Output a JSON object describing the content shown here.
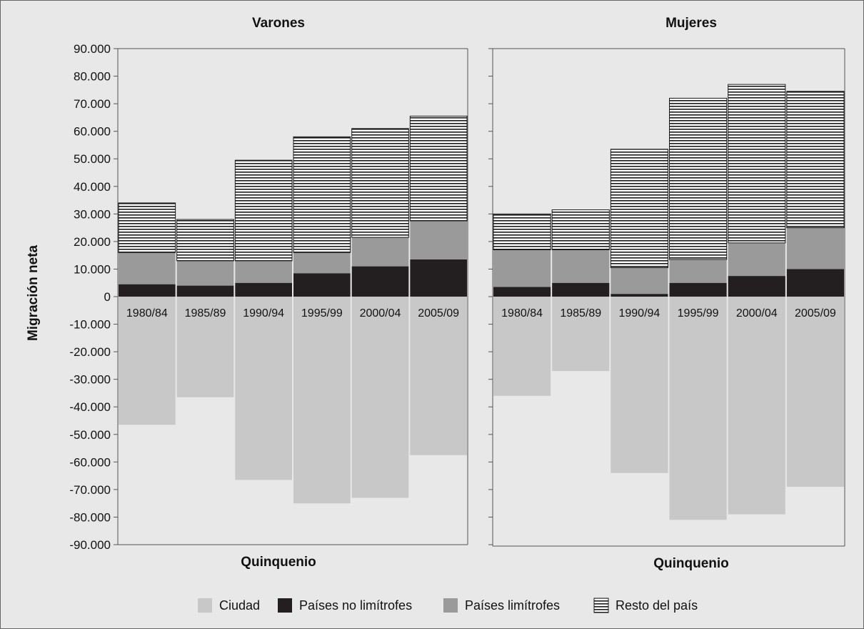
{
  "chart_data": [
    {
      "type": "bar",
      "stacked": true,
      "title": "Varones",
      "xlabel": "Quinquenio",
      "ylabel": "Migración neta",
      "ylim": [
        -90000,
        90000
      ],
      "yticks": [
        "90.000",
        "80.000",
        "70.000",
        "60.000",
        "50.000",
        "40.000",
        "30.000",
        "20.000",
        "10.000",
        "0",
        "-10.000",
        "-20.000",
        "-30.000",
        "-40.000",
        "-50.000",
        "-60.000",
        "-70.000",
        "-80.000",
        "-90.000"
      ],
      "categories": [
        "1980/84",
        "1985/89",
        "1990/94",
        "1995/99",
        "2000/04",
        "2005/09"
      ],
      "series": [
        {
          "name": "Ciudad",
          "values": [
            -46500,
            -36500,
            -66500,
            -75000,
            -73000,
            -57500
          ]
        },
        {
          "name": "Países no limítrofes",
          "values": [
            4500,
            4000,
            5000,
            8500,
            11000,
            13500
          ]
        },
        {
          "name": "Países limítrofes",
          "values": [
            11500,
            9000,
            8000,
            7500,
            10500,
            14000
          ]
        },
        {
          "name": "Resto del país",
          "values": [
            18000,
            15000,
            36500,
            42000,
            39500,
            38000
          ]
        }
      ]
    },
    {
      "type": "bar",
      "stacked": true,
      "title": "Mujeres",
      "xlabel": "Quinquenio",
      "ylim": [
        -90000,
        90000
      ],
      "categories": [
        "1980/84",
        "1985/89",
        "1990/94",
        "1995/99",
        "2000/04",
        "2005/09"
      ],
      "series": [
        {
          "name": "Ciudad",
          "values": [
            -36000,
            -27000,
            -64000,
            -81000,
            -79000,
            -69000
          ]
        },
        {
          "name": "Países no limítrofes",
          "values": [
            3500,
            5000,
            1000,
            5000,
            7500,
            10000
          ]
        },
        {
          "name": "Países limítrofes",
          "values": [
            13500,
            12000,
            9500,
            8500,
            12000,
            15000
          ]
        },
        {
          "name": "Resto del país",
          "values": [
            13000,
            14500,
            43000,
            58500,
            57500,
            49500
          ]
        }
      ]
    }
  ],
  "legend": {
    "position": "bottom",
    "items": [
      {
        "label": "Ciudad",
        "color": "#c8c8c8",
        "pattern": "solid"
      },
      {
        "label": "Países no limítrofes",
        "color": "#231f20",
        "pattern": "solid"
      },
      {
        "label": "Países limítrofes",
        "color": "#9a9a9a",
        "pattern": "solid"
      },
      {
        "label": "Resto del país",
        "color": "#1a1a1a",
        "pattern": "horizontal-lines"
      }
    ]
  },
  "colors": {
    "background": "#e8e8e8",
    "ciudad": "#c8c8c8",
    "no_limitrofes": "#231f20",
    "limitrofes": "#9a9a9a",
    "resto_lines": "#1a1a1a"
  }
}
